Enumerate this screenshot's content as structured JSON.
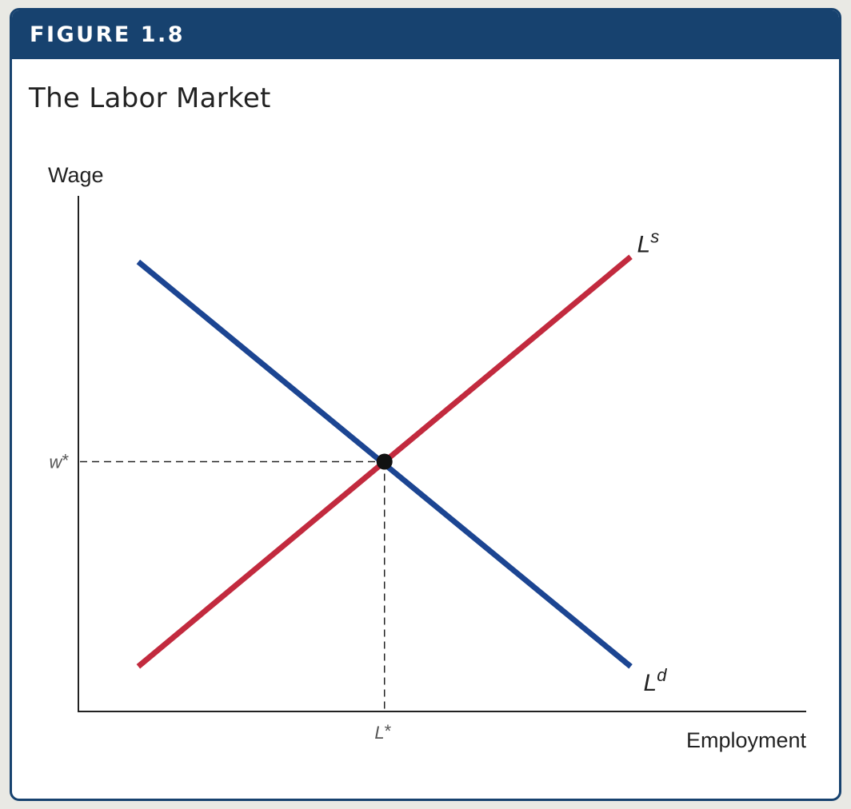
{
  "header": {
    "figure_label": "FIGURE 1.8"
  },
  "chart_data": {
    "type": "line",
    "title": "The Labor Market",
    "xlabel": "Employment",
    "ylabel": "Wage",
    "x_tick_label": {
      "base": "L",
      "sup": "*"
    },
    "y_tick_label": {
      "base": "w",
      "sup": "*"
    },
    "xlim": [
      0,
      10
    ],
    "ylim": [
      0,
      10
    ],
    "series": [
      {
        "name": {
          "base": "L",
          "sup": "d"
        },
        "color": "#1c4592",
        "x": [
          0.9,
          8.3
        ],
        "y": [
          9.0,
          0.9
        ]
      },
      {
        "name": {
          "base": "L",
          "sup": "s"
        },
        "color": "#c22a3e",
        "x": [
          0.9,
          8.3
        ],
        "y": [
          0.9,
          9.1
        ]
      }
    ],
    "equilibrium": {
      "x": 4.6,
      "y": 5.0
    },
    "grid": false,
    "colors": {
      "frame": "#17426f",
      "axis": "#222222",
      "guide": "#222222",
      "point": "#111111"
    }
  }
}
